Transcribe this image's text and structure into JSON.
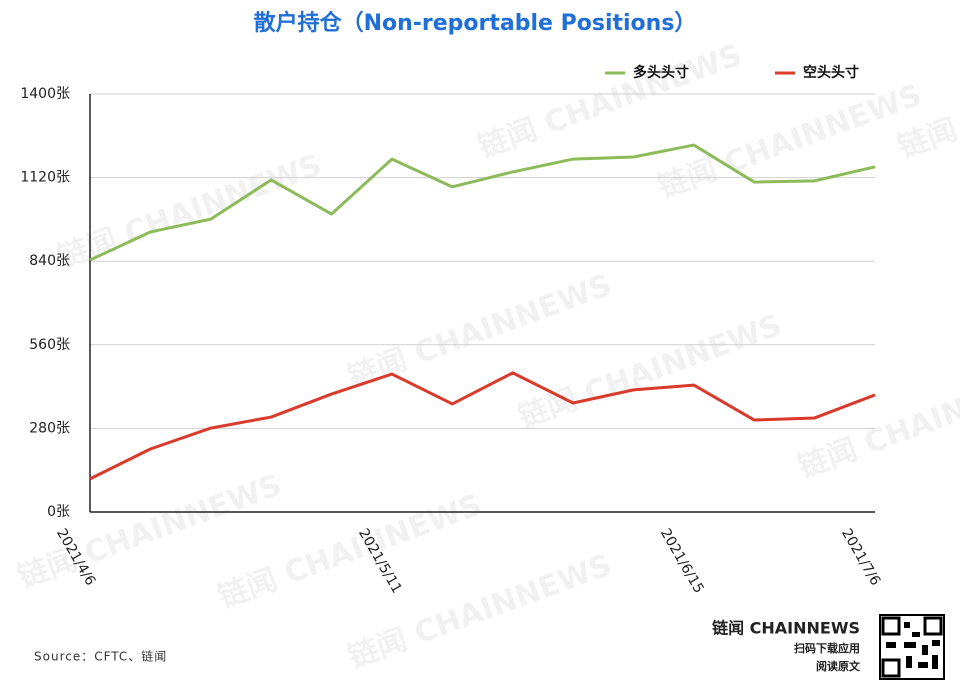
{
  "chart_data": {
    "type": "line",
    "title": "散户持仓（Non-reportable Positions）",
    "categories": [
      "2021/4/6",
      null,
      null,
      null,
      null,
      "2021/5/11",
      null,
      null,
      null,
      null,
      "2021/6/15",
      null,
      null,
      "2021/7/6"
    ],
    "series": [
      {
        "name": "多头头寸",
        "color": "#8dbb5a",
        "values": [
          844,
          938,
          981,
          1112,
          998,
          1182,
          1089,
          1139,
          1182,
          1189,
          1229,
          1105,
          1109,
          1156
        ]
      },
      {
        "name": "空头头寸",
        "color": "#d93a2b",
        "values": [
          111,
          211,
          281,
          318,
          395,
          462,
          362,
          466,
          365,
          409,
          425,
          308,
          315,
          392
        ]
      }
    ],
    "ylim": [
      0,
      1400
    ],
    "yticks": [
      {
        "value": 0,
        "label": "0张"
      },
      {
        "value": 280,
        "label": "280张"
      },
      {
        "value": 560,
        "label": "560张"
      },
      {
        "value": 840,
        "label": "840张"
      },
      {
        "value": 1120,
        "label": "1120张"
      },
      {
        "value": 1400,
        "label": "1400张"
      }
    ],
    "grid": true,
    "legend": "top-right",
    "source": "Source：CFTC、链闻",
    "brand": "链闻 CHAINNEWS",
    "qr_caption": [
      "扫码下载应用",
      "阅读原文"
    ],
    "watermark": "链闻 CHAINNEWS"
  }
}
